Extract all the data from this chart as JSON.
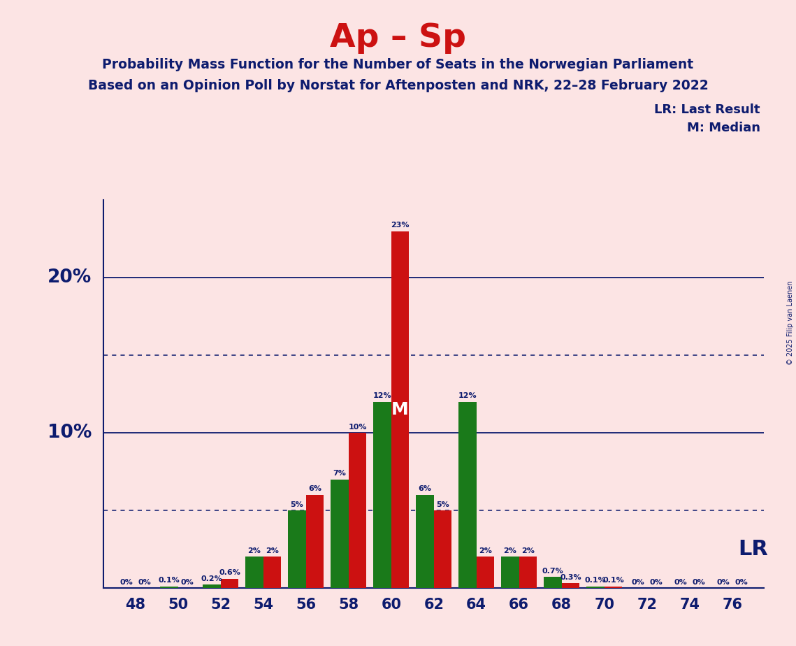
{
  "title": "Ap – Sp",
  "subtitle1": "Probability Mass Function for the Number of Seats in the Norwegian Parliament",
  "subtitle2": "Based on an Opinion Poll by Norstat for Aftenposten and NRK, 22–28 February 2022",
  "copyright": "© 2025 Filip van Laenen",
  "legend_lr": "LR: Last Result",
  "legend_m": "M: Median",
  "lr_label": "LR",
  "median_label": "M",
  "background_color": "#fce4e4",
  "bar_color_green": "#1a7a1a",
  "bar_color_red": "#cc1111",
  "text_color": "#0d1b6e",
  "title_color": "#cc1111",
  "seats": [
    48,
    50,
    52,
    54,
    56,
    58,
    60,
    62,
    64,
    66,
    68,
    70,
    72,
    74,
    76
  ],
  "pmf_values": [
    0.0,
    0.1,
    0.2,
    2.0,
    5.0,
    7.0,
    12.0,
    6.0,
    12.0,
    2.0,
    0.7,
    0.1,
    0.0,
    0.0,
    0.0
  ],
  "lr_values": [
    0.0,
    0.0,
    0.6,
    2.0,
    6.0,
    10.0,
    23.0,
    5.0,
    2.0,
    2.0,
    0.3,
    0.1,
    0.0,
    0.0,
    0.0
  ],
  "median_seat_idx": 6,
  "ylim_max": 25,
  "solid_lines": [
    10.0,
    20.0
  ],
  "dotted_lines": [
    5.0,
    15.0
  ],
  "ylabel_10": "10%",
  "ylabel_20": "20%"
}
